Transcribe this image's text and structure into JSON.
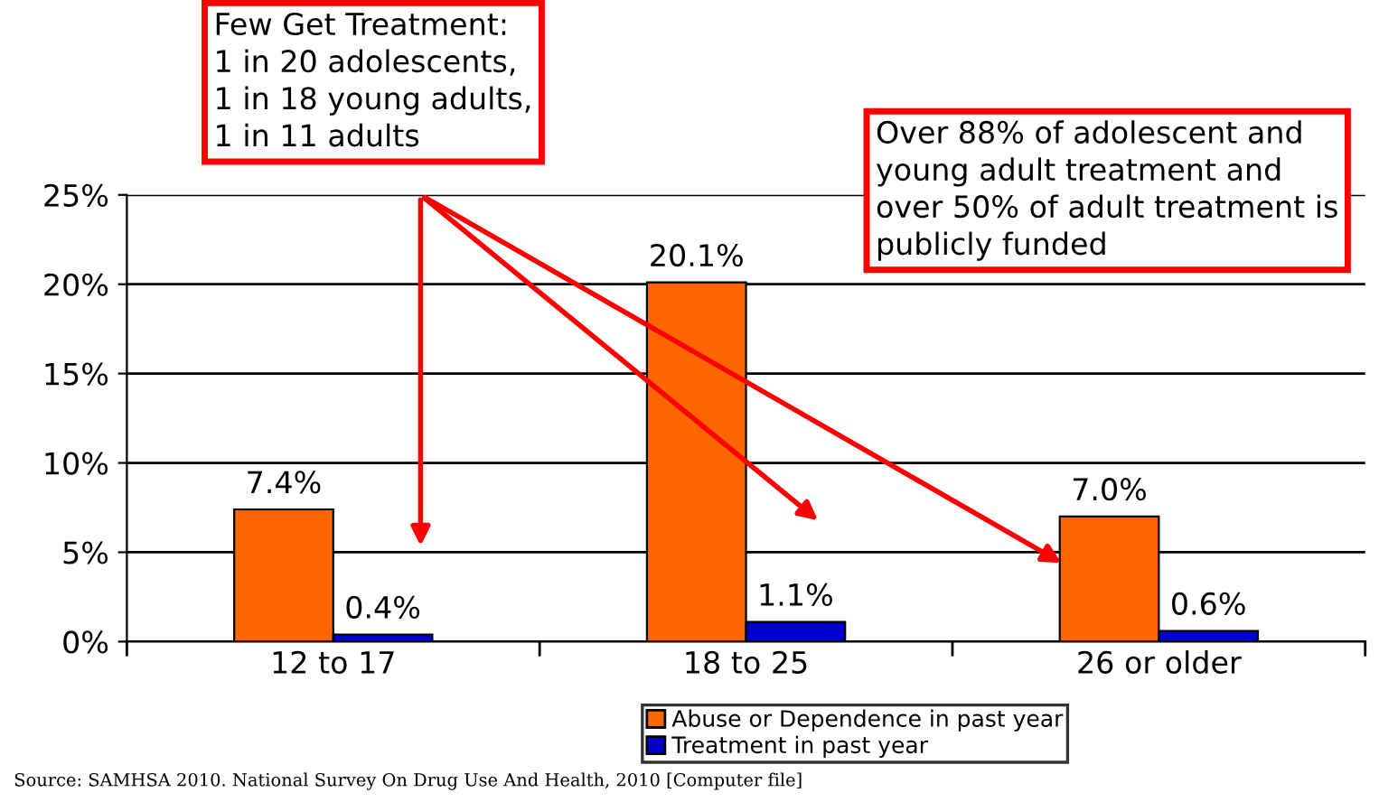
{
  "chart_data": {
    "type": "bar",
    "categories": [
      "12 to 17",
      "18 to 25",
      "26 or older"
    ],
    "series": [
      {
        "name": "Abuse or Dependence in past year",
        "color": "#ff6600",
        "values": [
          7.4,
          20.1,
          7.0
        ],
        "value_labels": [
          "7.4%",
          "20.1%",
          "7.0%"
        ]
      },
      {
        "name": "Treatment in past year",
        "color": "#0000cc",
        "values": [
          0.4,
          1.1,
          0.6
        ],
        "value_labels": [
          "0.4%",
          "1.1%",
          "0.6%"
        ]
      }
    ],
    "ylim": [
      0,
      25
    ],
    "yticks": [
      {
        "value": 0,
        "label": "0%"
      },
      {
        "value": 5,
        "label": "5%"
      },
      {
        "value": 10,
        "label": "10%"
      },
      {
        "value": 15,
        "label": "15%"
      },
      {
        "value": 20,
        "label": "20%"
      },
      {
        "value": 25,
        "label": "25%"
      }
    ],
    "grid": "y",
    "legend": "bottom",
    "annotations": [
      "Few Get Treatment:\n1 in 20 adolescents,\n1 in 18 young adults,\n1 in 11 adults",
      "Over 88% of adolescent and\nyoung adult treatment and\nover 50% of adult treatment is\npublicly funded",
      "Source: SAMHSA 2010. National Survey On Drug Use And Health, 2010 [Computer file]"
    ]
  }
}
